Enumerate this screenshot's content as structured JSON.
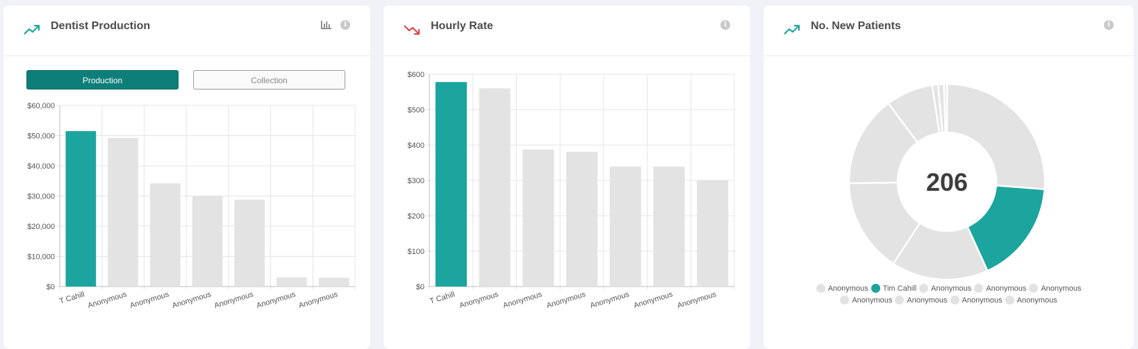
{
  "colors": {
    "accent": "#1ca59e",
    "bar_gray": "#e3e3e3",
    "trend_up": "#1ca59e",
    "trend_down": "#e0484c",
    "button_active": "#0e7f78"
  },
  "cards": [
    {
      "title": "Dentist Production",
      "trend_icon": "trend-up-icon",
      "header_icons": [
        "bar-chart-icon",
        "info-icon"
      ],
      "toggle": {
        "production_label": "Production",
        "collection_label": "Collection",
        "selected": "Production"
      }
    },
    {
      "title": "Hourly Rate",
      "trend_icon": "trend-down-icon",
      "header_icons": [
        "info-icon"
      ]
    },
    {
      "title": "No. New Patients",
      "trend_icon": "trend-up-icon",
      "header_icons": [
        "info-icon"
      ]
    }
  ],
  "info_glyph": "i",
  "chart_data": [
    {
      "type": "bar",
      "title": "",
      "xlabel": "",
      "ylabel": "",
      "categories": [
        "T Cahill",
        "Anonymous",
        "Anonymous",
        "Anonymous",
        "Anonymous",
        "Anonymous",
        "Anonymous"
      ],
      "values": [
        51500,
        49200,
        34200,
        30000,
        28800,
        3000,
        2900
      ],
      "highlight_index": 0,
      "ylim": [
        0,
        60000
      ],
      "yticks": [
        "$0",
        "$10,000",
        "$20,000",
        "$30,000",
        "$40,000",
        "$50,000",
        "$60,000"
      ],
      "grid": true
    },
    {
      "type": "bar",
      "title": "",
      "xlabel": "",
      "ylabel": "",
      "categories": [
        "T Cahill",
        "Anonymous",
        "Anonymous",
        "Anonymous",
        "Anonymous",
        "Anonymous",
        "Anonymous"
      ],
      "values": [
        578,
        560,
        387,
        381,
        339,
        339,
        300
      ],
      "highlight_index": 0,
      "ylim": [
        0,
        600
      ],
      "yticks": [
        "$0",
        "$100",
        "$200",
        "$300",
        "$400",
        "$500",
        "$600"
      ],
      "grid": true
    },
    {
      "type": "pie",
      "donut": true,
      "center_label": "206",
      "total": 206,
      "slices": [
        {
          "name": "Anonymous",
          "value": 54
        },
        {
          "name": "Tim Cahill",
          "value": 35
        },
        {
          "name": "Anonymous",
          "value": 33
        },
        {
          "name": "Anonymous",
          "value": 32
        },
        {
          "name": "Anonymous",
          "value": 31
        },
        {
          "name": "Anonymous",
          "value": 16
        },
        {
          "name": "Anonymous",
          "value": 2
        },
        {
          "name": "Anonymous",
          "value": 2
        },
        {
          "name": "Anonymous",
          "value": 1
        }
      ],
      "highlight_index": 1,
      "legend": {
        "placement": "bottom",
        "row1": [
          "Anonymous",
          "Tim Cahill",
          "Anonymous",
          "Anonymous",
          "Anonymous"
        ],
        "row2": [
          "Anonymous",
          "Anonymous",
          "Anonymous",
          "Anonymous"
        ]
      }
    }
  ]
}
